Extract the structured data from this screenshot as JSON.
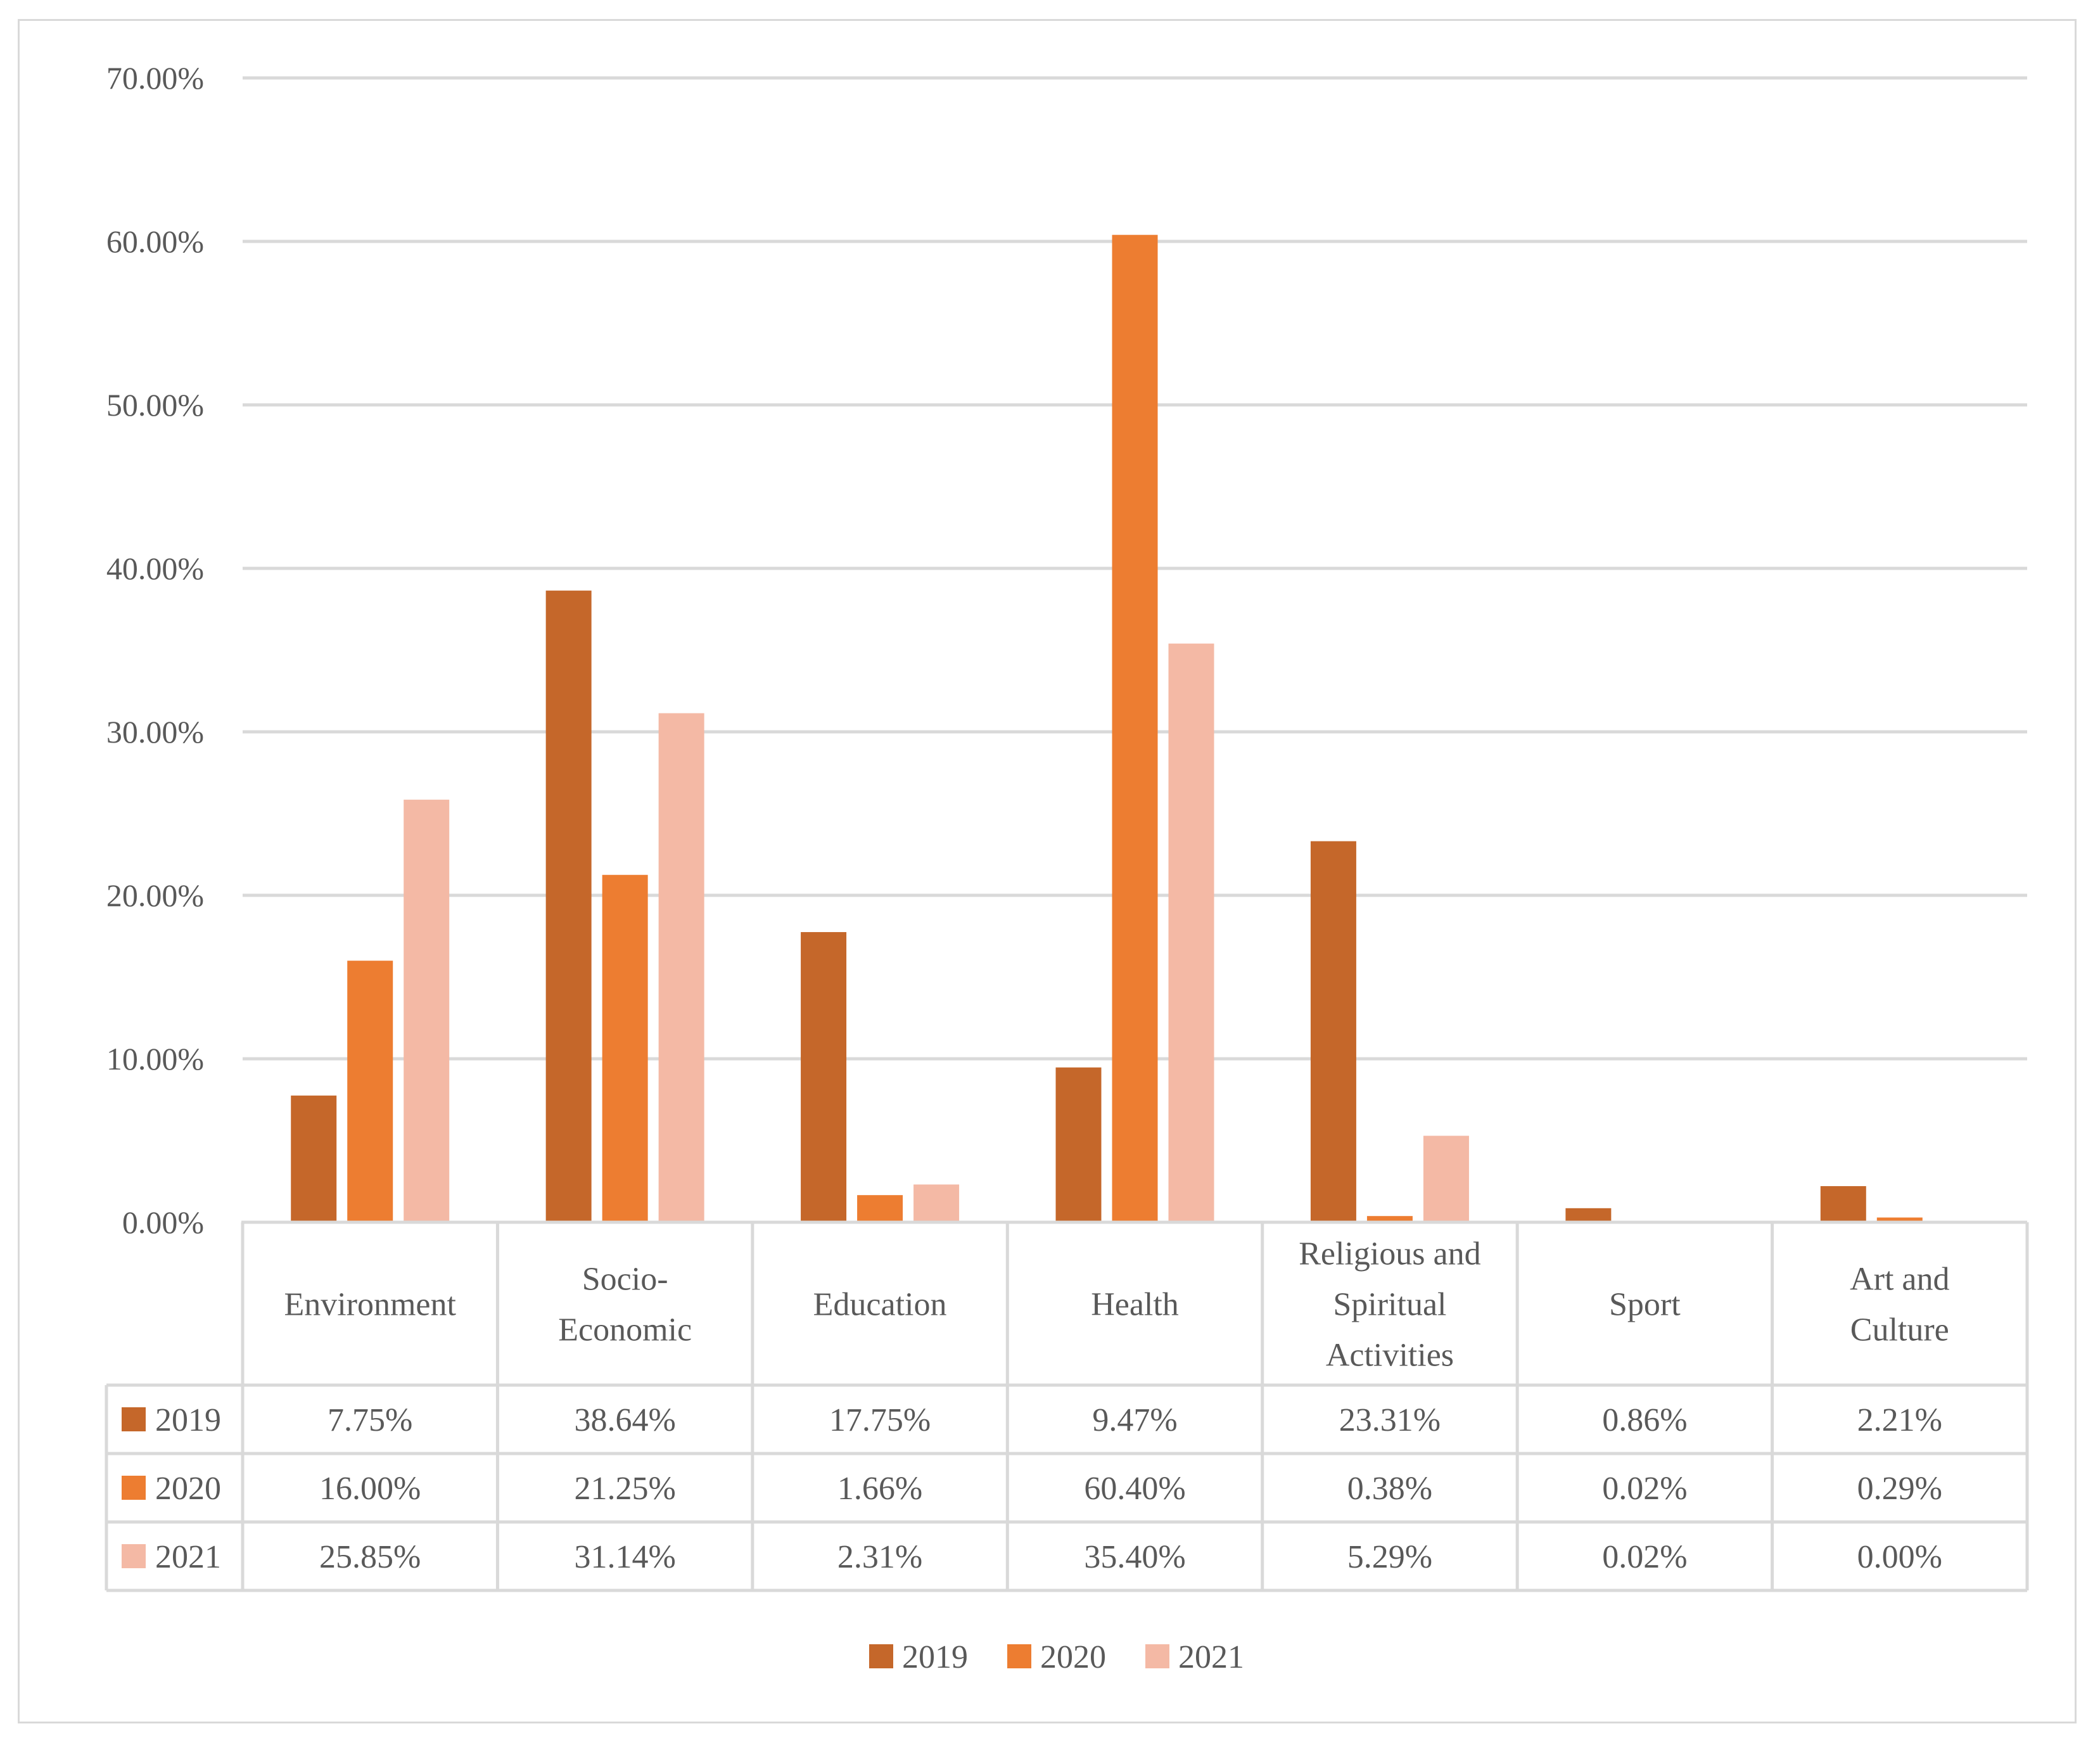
{
  "chart_data": {
    "type": "bar",
    "title": "",
    "xlabel": "",
    "ylabel": "",
    "ylim": [
      0,
      70
    ],
    "yticks": [
      "0.00%",
      "10.00%",
      "20.00%",
      "30.00%",
      "40.00%",
      "50.00%",
      "60.00%",
      "70.00%"
    ],
    "grid": true,
    "legend_position": "bottom",
    "categories": [
      [
        "Environment"
      ],
      [
        "Socio-",
        "Economic"
      ],
      [
        "Education"
      ],
      [
        "Health"
      ],
      [
        "Religious and",
        "Spiritual",
        "Activities"
      ],
      [
        "Sport"
      ],
      [
        "Art and",
        "Culture"
      ]
    ],
    "series": [
      {
        "name": "2019",
        "color": "#c5672a",
        "values": [
          7.75,
          38.64,
          17.75,
          9.47,
          23.31,
          0.86,
          2.21
        ],
        "labels": [
          "7.75%",
          "38.64%",
          "17.75%",
          "9.47%",
          "23.31%",
          "0.86%",
          "2.21%"
        ]
      },
      {
        "name": "2020",
        "color": "#ed7d31",
        "values": [
          16.0,
          21.25,
          1.66,
          60.4,
          0.38,
          0.02,
          0.29
        ],
        "labels": [
          "16.00%",
          "21.25%",
          "1.66%",
          "60.40%",
          "0.38%",
          "0.02%",
          "0.29%"
        ]
      },
      {
        "name": "2021",
        "color": "#f4b9a5",
        "values": [
          25.85,
          31.14,
          2.31,
          35.4,
          5.29,
          0.02,
          0.0
        ],
        "labels": [
          "25.85%",
          "31.14%",
          "2.31%",
          "35.40%",
          "5.29%",
          "0.02%",
          "0.00%"
        ]
      }
    ]
  }
}
